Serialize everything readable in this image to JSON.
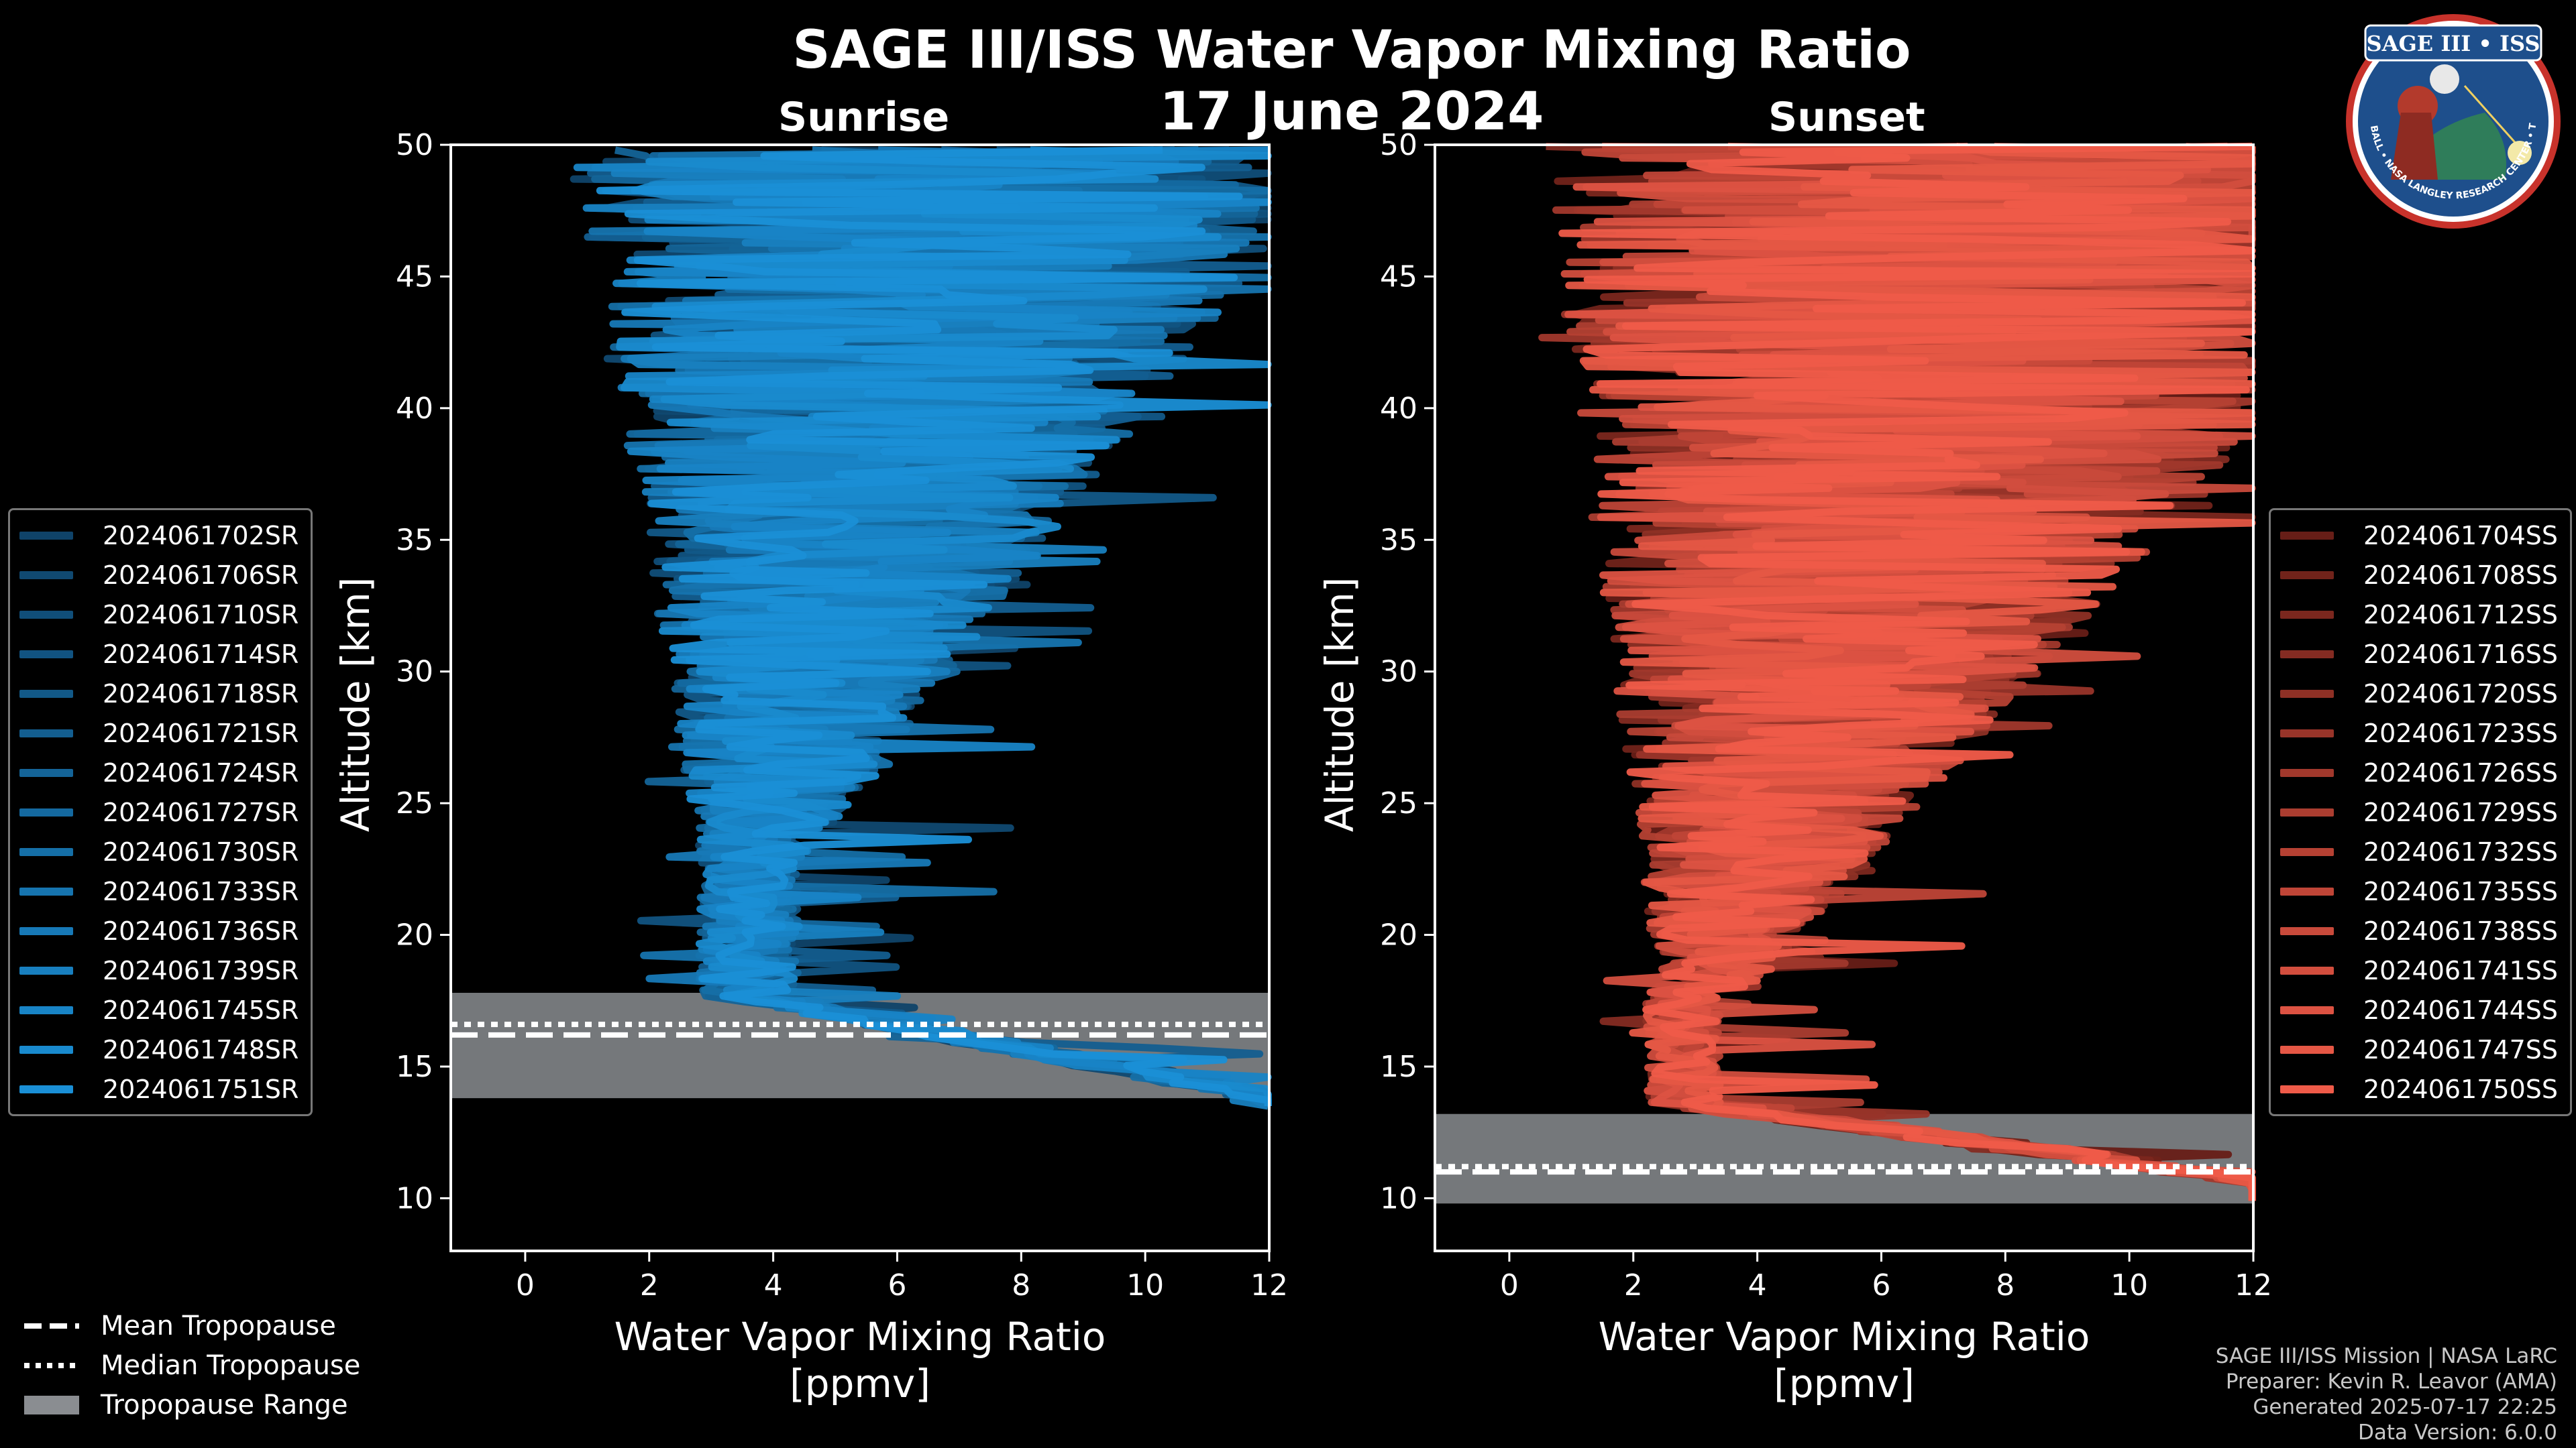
{
  "figure": {
    "title": "SAGE III/ISS Water Vapor Mixing Ratio",
    "date": "17 June 2024",
    "subtitle_left": "Sunrise",
    "subtitle_right": "Sunset"
  },
  "colors": {
    "sunrise": "#1a8fd6",
    "sunset": "#ef5b49",
    "tropo_range": "#8a8d91",
    "background": "#000000"
  },
  "chart_data": [
    {
      "type": "line",
      "panel": "Sunrise",
      "xlabel_line1": "Water Vapor Mixing Ratio",
      "xlabel_line2": "[ppmv]",
      "ylabel": "Altitude [km]",
      "xlim": [
        -1.2,
        12
      ],
      "ylim": [
        8,
        50
      ],
      "xticks": [
        0,
        2,
        4,
        6,
        8,
        10,
        12
      ],
      "yticks": [
        10,
        15,
        20,
        25,
        30,
        35,
        40,
        45,
        50
      ],
      "tropopause": {
        "mean": 16.2,
        "median": 16.6,
        "range": [
          13.8,
          17.8
        ]
      },
      "series": [
        {
          "name": "2024061702SR"
        },
        {
          "name": "2024061706SR"
        },
        {
          "name": "2024061710SR"
        },
        {
          "name": "2024061714SR"
        },
        {
          "name": "2024061718SR"
        },
        {
          "name": "2024061721SR"
        },
        {
          "name": "2024061724SR"
        },
        {
          "name": "2024061727SR"
        },
        {
          "name": "2024061730SR"
        },
        {
          "name": "2024061733SR"
        },
        {
          "name": "2024061736SR"
        },
        {
          "name": "2024061739SR"
        },
        {
          "name": "2024061745SR"
        },
        {
          "name": "2024061748SR"
        },
        {
          "name": "2024061751SR"
        }
      ]
    },
    {
      "type": "line",
      "panel": "Sunset",
      "xlabel_line1": "Water Vapor Mixing Ratio",
      "xlabel_line2": "[ppmv]",
      "ylabel": "Altitude [km]",
      "xlim": [
        -1.2,
        12
      ],
      "ylim": [
        8,
        50
      ],
      "xticks": [
        0,
        2,
        4,
        6,
        8,
        10,
        12
      ],
      "yticks": [
        10,
        15,
        20,
        25,
        30,
        35,
        40,
        45,
        50
      ],
      "tropopause": {
        "mean": 11.0,
        "median": 11.2,
        "range": [
          9.8,
          13.2
        ]
      },
      "series": [
        {
          "name": "2024061704SS"
        },
        {
          "name": "2024061708SS"
        },
        {
          "name": "2024061712SS"
        },
        {
          "name": "2024061716SS"
        },
        {
          "name": "2024061720SS"
        },
        {
          "name": "2024061723SS"
        },
        {
          "name": "2024061726SS"
        },
        {
          "name": "2024061729SS"
        },
        {
          "name": "2024061732SS"
        },
        {
          "name": "2024061735SS"
        },
        {
          "name": "2024061738SS"
        },
        {
          "name": "2024061741SS"
        },
        {
          "name": "2024061744SS"
        },
        {
          "name": "2024061747SS"
        },
        {
          "name": "2024061750SS"
        }
      ]
    }
  ],
  "tropo_legend": {
    "mean": "Mean Tropopause",
    "median": "Median Tropopause",
    "range": "Tropopause Range"
  },
  "credits": {
    "line1": "SAGE III/ISS Mission | NASA LaRC",
    "line2": "Preparer: Kevin R. Leavor (AMA)",
    "line3": "Generated 2025-07-17 22:25",
    "line4": "Data Version: 6.0.0"
  },
  "badge": {
    "top_text": "SAGE III • ISS",
    "ring_text": "BALL • NASA LANGLEY RESEARCH CENTER • TAS-I • ESA"
  }
}
